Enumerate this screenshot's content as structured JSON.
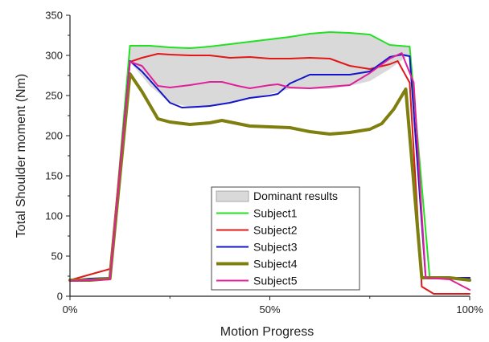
{
  "chart_data": {
    "type": "line",
    "xlabel": "Motion Progress",
    "ylabel": "Total Shoulder moment (Nm)",
    "xlim": [
      0,
      100
    ],
    "ylim": [
      0,
      350
    ],
    "x_ticks": [
      0,
      50,
      100
    ],
    "x_tick_labels": [
      "0%",
      "50%",
      "100%"
    ],
    "y_ticks": [
      0,
      50,
      100,
      150,
      200,
      250,
      300,
      350
    ],
    "y_tick_labels": [
      "0",
      "50",
      "100",
      "150",
      "200",
      "250",
      "300",
      "350"
    ],
    "grid": false,
    "legend_position": "bottom-center",
    "band": {
      "name": "Dominant results",
      "color": "#d9d9d9",
      "upper": [
        [
          0,
          23
        ],
        [
          10,
          23
        ],
        [
          15,
          312
        ],
        [
          20,
          312
        ],
        [
          25,
          310
        ],
        [
          30,
          309
        ],
        [
          35,
          311
        ],
        [
          40,
          314
        ],
        [
          45,
          317
        ],
        [
          50,
          320
        ],
        [
          55,
          323
        ],
        [
          60,
          327
        ],
        [
          65,
          329
        ],
        [
          70,
          328
        ],
        [
          75,
          326
        ],
        [
          80,
          313
        ],
        [
          85,
          311
        ],
        [
          90,
          23
        ],
        [
          100,
          23
        ]
      ],
      "lower": [
        [
          0,
          23
        ],
        [
          10,
          23
        ],
        [
          15,
          292
        ],
        [
          20,
          262
        ],
        [
          25,
          241
        ],
        [
          30,
          236
        ],
        [
          35,
          237
        ],
        [
          40,
          242
        ],
        [
          45,
          247
        ],
        [
          50,
          252
        ],
        [
          55,
          258
        ],
        [
          60,
          258
        ],
        [
          65,
          258
        ],
        [
          70,
          262
        ],
        [
          75,
          268
        ],
        [
          80,
          283
        ],
        [
          85,
          301
        ],
        [
          90,
          23
        ],
        [
          100,
          23
        ]
      ]
    },
    "series": [
      {
        "name": "Subject1",
        "color": "#22e022",
        "width": 2,
        "points": [
          [
            0,
            21
          ],
          [
            5,
            20
          ],
          [
            10,
            22
          ],
          [
            15,
            312
          ],
          [
            20,
            312
          ],
          [
            25,
            310
          ],
          [
            30,
            309
          ],
          [
            35,
            311
          ],
          [
            40,
            314
          ],
          [
            45,
            317
          ],
          [
            50,
            320
          ],
          [
            55,
            323
          ],
          [
            60,
            327
          ],
          [
            65,
            329
          ],
          [
            70,
            328
          ],
          [
            75,
            326
          ],
          [
            80,
            313
          ],
          [
            85,
            311
          ],
          [
            90,
            23
          ],
          [
            95,
            23
          ],
          [
            100,
            23
          ]
        ]
      },
      {
        "name": "Subject2",
        "color": "#e01818",
        "width": 2,
        "points": [
          [
            0,
            20
          ],
          [
            5,
            27
          ],
          [
            10,
            34
          ],
          [
            15,
            292
          ],
          [
            18,
            297
          ],
          [
            22,
            302
          ],
          [
            25,
            301
          ],
          [
            30,
            300
          ],
          [
            35,
            300
          ],
          [
            40,
            297
          ],
          [
            45,
            298
          ],
          [
            50,
            296
          ],
          [
            55,
            296
          ],
          [
            60,
            297
          ],
          [
            65,
            296
          ],
          [
            70,
            287
          ],
          [
            75,
            283
          ],
          [
            80,
            289
          ],
          [
            82,
            293
          ],
          [
            85,
            266
          ],
          [
            88,
            12
          ],
          [
            91,
            3
          ],
          [
            95,
            3
          ],
          [
            100,
            3
          ]
        ]
      },
      {
        "name": "Subject3",
        "color": "#1414c8",
        "width": 2,
        "points": [
          [
            0,
            20
          ],
          [
            5,
            22
          ],
          [
            10,
            23
          ],
          [
            15,
            293
          ],
          [
            18,
            280
          ],
          [
            22,
            258
          ],
          [
            25,
            241
          ],
          [
            28,
            235
          ],
          [
            32,
            236
          ],
          [
            35,
            237
          ],
          [
            40,
            241
          ],
          [
            45,
            247
          ],
          [
            50,
            250
          ],
          [
            52,
            252
          ],
          [
            55,
            265
          ],
          [
            60,
            276
          ],
          [
            65,
            276
          ],
          [
            70,
            276
          ],
          [
            75,
            280
          ],
          [
            80,
            298
          ],
          [
            83,
            301
          ],
          [
            85,
            299
          ],
          [
            89,
            23
          ],
          [
            95,
            23
          ],
          [
            100,
            23
          ]
        ]
      },
      {
        "name": "Subject4",
        "color": "#7f7f10",
        "width": 4,
        "points": [
          [
            0,
            20
          ],
          [
            5,
            20
          ],
          [
            10,
            22
          ],
          [
            15,
            277
          ],
          [
            18,
            255
          ],
          [
            22,
            221
          ],
          [
            25,
            217
          ],
          [
            30,
            214
          ],
          [
            35,
            216
          ],
          [
            38,
            219
          ],
          [
            42,
            215
          ],
          [
            45,
            212
          ],
          [
            50,
            211
          ],
          [
            55,
            210
          ],
          [
            60,
            205
          ],
          [
            65,
            202
          ],
          [
            70,
            204
          ],
          [
            75,
            208
          ],
          [
            78,
            215
          ],
          [
            81,
            233
          ],
          [
            84,
            258
          ],
          [
            88,
            23
          ],
          [
            95,
            23
          ],
          [
            100,
            20
          ]
        ]
      },
      {
        "name": "Subject5",
        "color": "#e0209a",
        "width": 2,
        "points": [
          [
            0,
            19
          ],
          [
            5,
            20
          ],
          [
            10,
            21
          ],
          [
            15,
            292
          ],
          [
            18,
            287
          ],
          [
            22,
            262
          ],
          [
            25,
            260
          ],
          [
            30,
            263
          ],
          [
            35,
            267
          ],
          [
            38,
            267
          ],
          [
            42,
            262
          ],
          [
            45,
            259
          ],
          [
            50,
            263
          ],
          [
            52,
            264
          ],
          [
            55,
            260
          ],
          [
            60,
            259
          ],
          [
            65,
            261
          ],
          [
            70,
            263
          ],
          [
            75,
            278
          ],
          [
            80,
            296
          ],
          [
            83,
            303
          ],
          [
            86,
            266
          ],
          [
            89,
            23
          ],
          [
            95,
            21
          ],
          [
            100,
            8
          ]
        ]
      }
    ]
  }
}
